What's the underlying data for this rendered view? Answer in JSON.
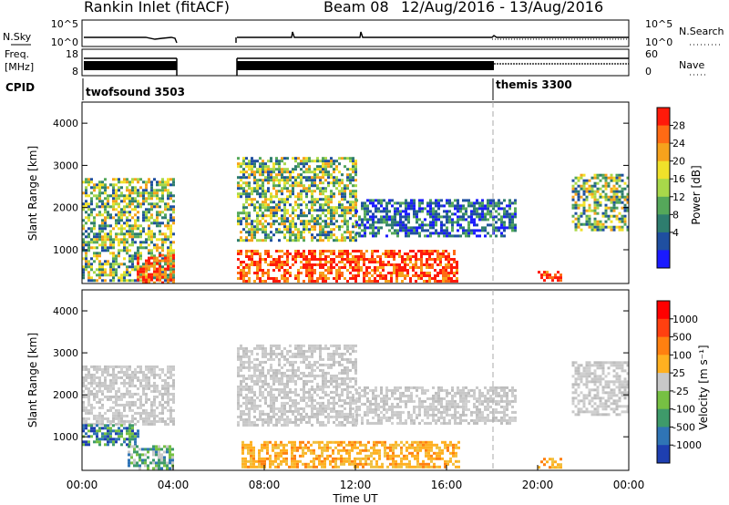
{
  "header": {
    "station": "Rankin Inlet (fitACF)",
    "beam": "Beam 08",
    "daterange": "12/Aug/2016 - 13/Aug/2016"
  },
  "top_panels": {
    "nsky_label": "N.Sky",
    "nsky_ticks": [
      "10^5",
      "10^0"
    ],
    "nsearch_label": "N.Search",
    "nsearch_ticks": [
      "10^5",
      "10^0"
    ],
    "freq_label_1": "Freq.",
    "freq_label_2": "[MHz]",
    "freq_ticks": [
      "18",
      "8"
    ],
    "nave_label": "Nave",
    "nave_ticks": [
      "60",
      "0"
    ],
    "cpid_label": "CPID",
    "cpid_modes": [
      {
        "name": "twofsound 3503",
        "start_hour": 0
      },
      {
        "name": "themis 3300",
        "start_hour": 18
      }
    ]
  },
  "chart_data": [
    {
      "type": "heatmap",
      "title": "",
      "xlabel": "",
      "ylabel": "Slant Range [km]",
      "xlim_hours": [
        0,
        24
      ],
      "ylim_km": [
        200,
        4500
      ],
      "yticks": [
        "1000",
        "2000",
        "3000",
        "4000"
      ],
      "data_gap_hours": [
        4.0,
        6.8
      ],
      "colorbar": {
        "label": "Power [dB]",
        "tick_labels": [
          "28",
          "24",
          "20",
          "16",
          "12",
          "8",
          "4"
        ],
        "colors": [
          "#1a1aff",
          "#1f4fa0",
          "#2e7d6e",
          "#55a85a",
          "#a8d84a",
          "#f0e12a",
          "#f6a21c",
          "#ff6a14",
          "#ff1a0a"
        ]
      },
      "echo_regions": [
        {
          "t0": 0.0,
          "t1": 4.0,
          "r0": 300,
          "r1": 2700,
          "level": "medium"
        },
        {
          "t0": 2.4,
          "t1": 4.0,
          "r0": 250,
          "r1": 900,
          "level": "high"
        },
        {
          "t0": 6.8,
          "t1": 16.5,
          "r0": 250,
          "r1": 1000,
          "level": "high"
        },
        {
          "t0": 6.8,
          "t1": 12.0,
          "r0": 1200,
          "r1": 3200,
          "level": "medium"
        },
        {
          "t0": 12.0,
          "t1": 19.0,
          "r0": 1300,
          "r1": 2200,
          "level": "low"
        },
        {
          "t0": 20.0,
          "t1": 21.0,
          "r0": 250,
          "r1": 500,
          "level": "high"
        },
        {
          "t0": 21.5,
          "t1": 24.0,
          "r0": 1500,
          "r1": 2800,
          "level": "medium"
        }
      ]
    },
    {
      "type": "heatmap",
      "title": "",
      "xlabel": "Time UT",
      "ylabel": "Slant Range [km]",
      "xlim_hours": [
        0,
        24
      ],
      "ylim_km": [
        200,
        4500
      ],
      "yticks": [
        "1000",
        "2000",
        "3000",
        "4000"
      ],
      "xticks": [
        "00:00",
        "04:00",
        "08:00",
        "12:00",
        "16:00",
        "20:00",
        "00:00"
      ],
      "data_gap_hours": [
        4.0,
        6.8
      ],
      "colorbar": {
        "label": "Velocity [m s⁻¹]",
        "tick_labels": [
          "1000",
          "500",
          "100",
          "25",
          "-25",
          "-100",
          "-500",
          "-1000"
        ],
        "colors": [
          "#1e3fb0",
          "#2f74b5",
          "#3e9a6a",
          "#76c043",
          "#c8c8c8",
          "#ffb020",
          "#ff8010",
          "#ff4010",
          "#ff0000"
        ]
      },
      "echo_regions": [
        {
          "t0": 0.0,
          "t1": 4.0,
          "r0": 1300,
          "r1": 2700,
          "level": "ground"
        },
        {
          "t0": 0.0,
          "t1": 2.5,
          "r0": 800,
          "r1": 1300,
          "level": "toward"
        },
        {
          "t0": 2.0,
          "t1": 4.0,
          "r0": 250,
          "r1": 800,
          "level": "mixed"
        },
        {
          "t0": 6.8,
          "t1": 12.0,
          "r0": 1300,
          "r1": 3200,
          "level": "ground"
        },
        {
          "t0": 7.0,
          "t1": 16.5,
          "r0": 250,
          "r1": 900,
          "level": "away"
        },
        {
          "t0": 12.0,
          "t1": 19.0,
          "r0": 1300,
          "r1": 2200,
          "level": "ground"
        },
        {
          "t0": 20.0,
          "t1": 21.0,
          "r0": 250,
          "r1": 500,
          "level": "away"
        },
        {
          "t0": 21.5,
          "t1": 24.0,
          "r0": 1500,
          "r1": 2800,
          "level": "ground"
        }
      ]
    }
  ]
}
